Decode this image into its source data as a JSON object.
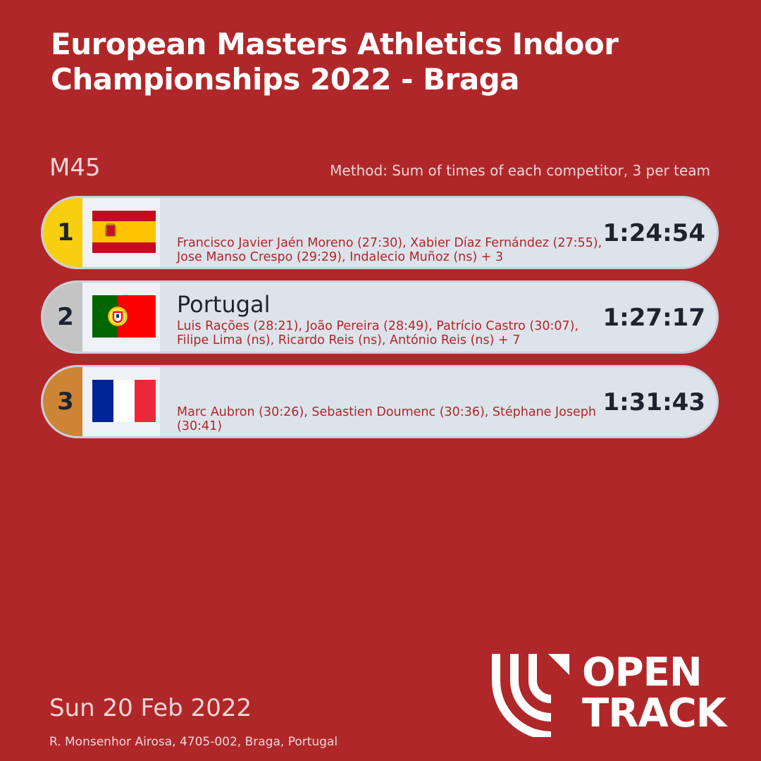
{
  "header": {
    "title": "European Masters Athletics Indoor Championships 2022 - Braga"
  },
  "category": "M45",
  "method": "Method: Sum of times of each competitor, 3 per team",
  "colors": {
    "background": "#b0272a",
    "gold": "#f7cf10",
    "silver": "#c4c4c4",
    "bronze": "#cd8434"
  },
  "results": [
    {
      "rank": "1",
      "team": "",
      "flag": "spain-flag",
      "athletes": "Francisco Javier Jaén Moreno (27:30), Xabier Díaz Fernández (27:55), Jose Manso Crespo (29:29), Indalecio Muñoz (ns) + 3",
      "time": "1:24:54"
    },
    {
      "rank": "2",
      "team": "Portugal",
      "flag": "portugal-flag",
      "athletes": "Luis Rações (28:21), João Pereira (28:49), Patrício Castro (30:07), Filipe Lima (ns), Ricardo Reis (ns), António Reis (ns) + 7",
      "time": "1:27:17"
    },
    {
      "rank": "3",
      "team": "",
      "flag": "france-flag",
      "athletes": "Marc Aubron (30:26), Sebastien Doumenc (30:36), Stéphane Joseph (30:41)",
      "time": "1:31:43"
    }
  ],
  "footer": {
    "date": "Sun 20 Feb 2022",
    "address": "R. Monsenhor Airosa, 4705-002, Braga, Portugal"
  },
  "logo": {
    "line1": "OPEN",
    "line2": "TRACK"
  }
}
